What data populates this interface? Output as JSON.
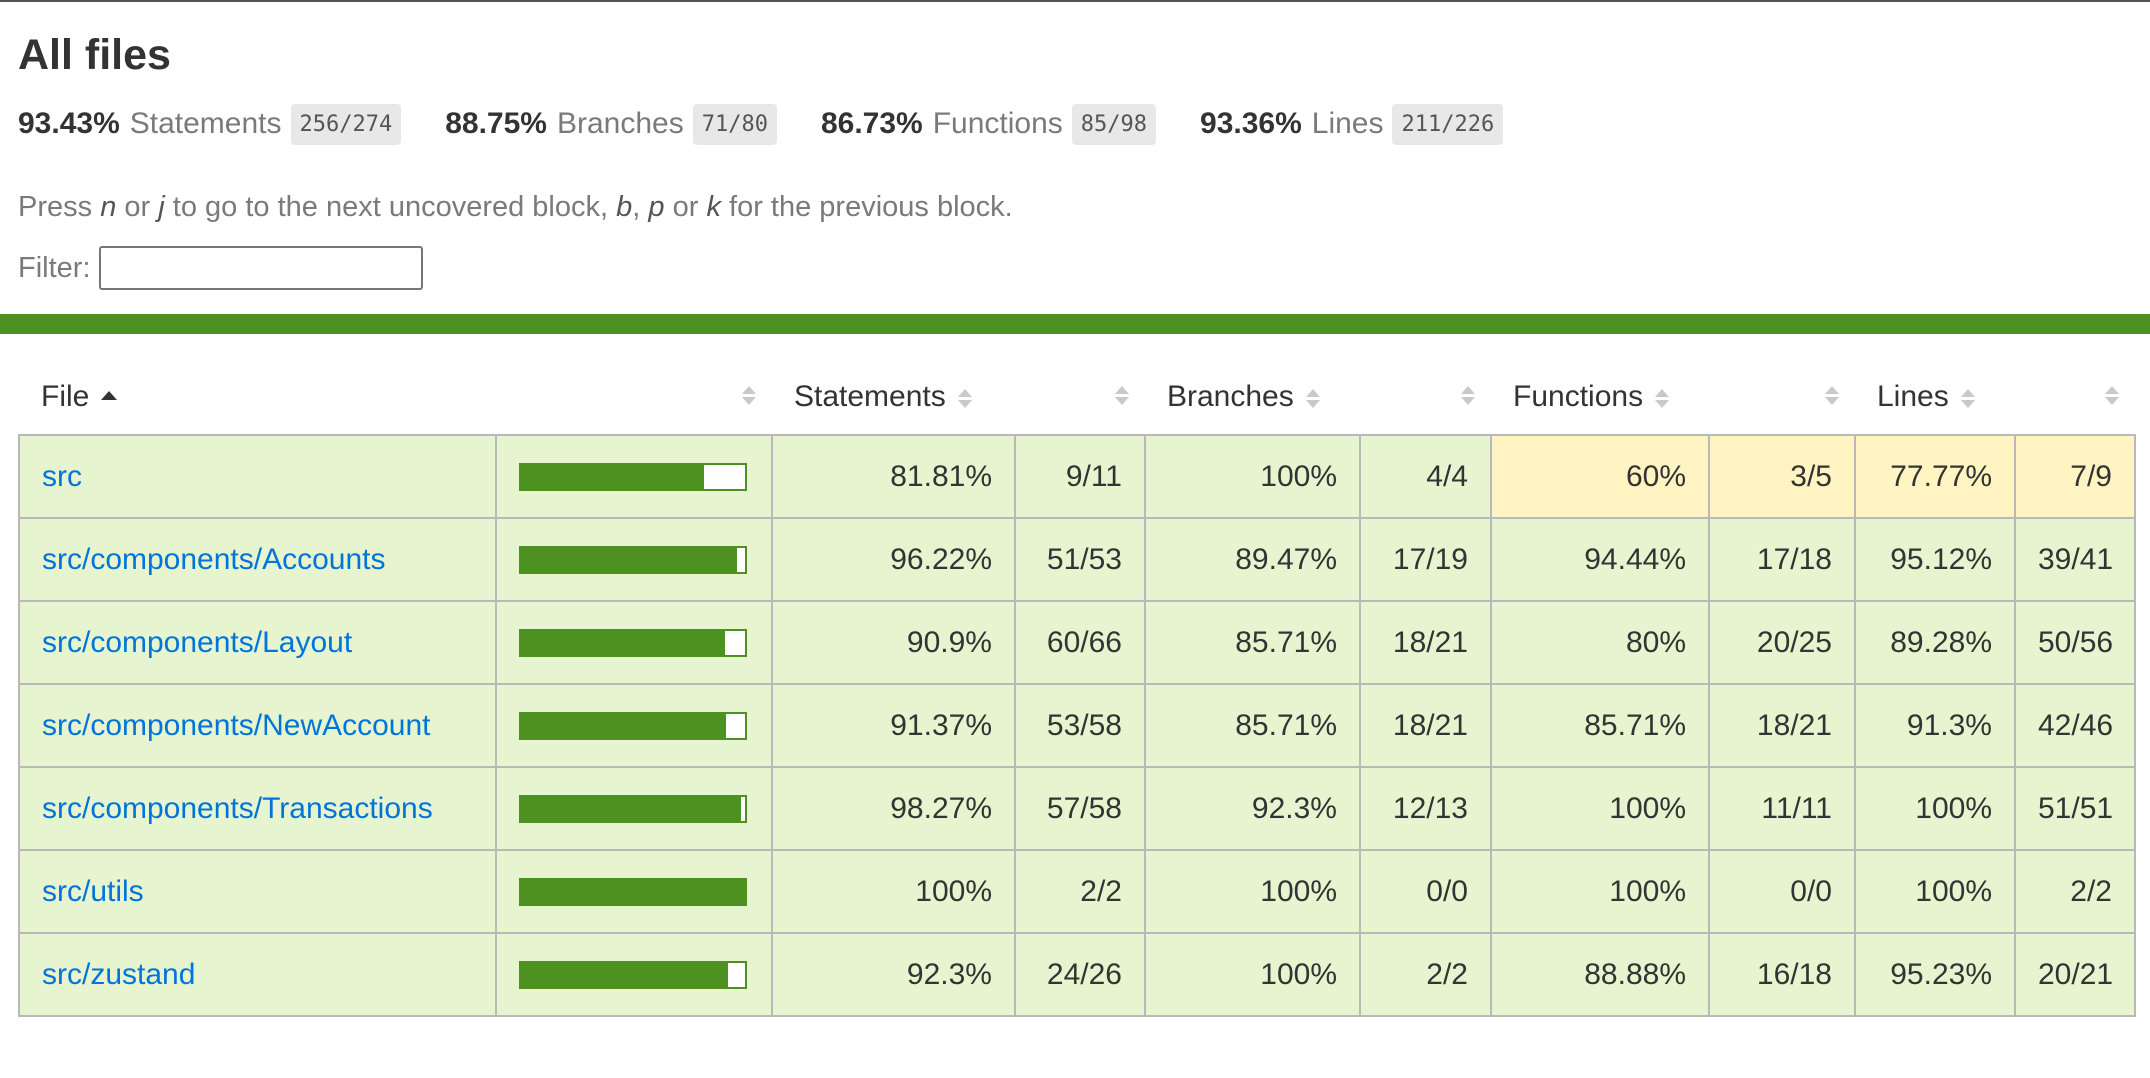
{
  "page": {
    "title": "All files",
    "summary": [
      {
        "pct": "93.43%",
        "label": "Statements",
        "frac": "256/274"
      },
      {
        "pct": "88.75%",
        "label": "Branches",
        "frac": "71/80"
      },
      {
        "pct": "86.73%",
        "label": "Functions",
        "frac": "85/98"
      },
      {
        "pct": "93.36%",
        "label": "Lines",
        "frac": "211/226"
      }
    ],
    "hint": {
      "press": "Press",
      "n": "n",
      "or1": "or",
      "j": "j",
      "mid": "to go to the next uncovered block,",
      "b": "b",
      "comma": ",",
      "p": "p",
      "or2": "or",
      "k": "k",
      "end": "for the previous block."
    },
    "filter_label": "Filter:",
    "filter_value": ""
  },
  "table": {
    "headers": {
      "file": "File",
      "statements": "Statements",
      "branches": "Branches",
      "functions": "Functions",
      "lines": "Lines"
    },
    "rows": [
      {
        "file": "src",
        "bar_fraction": 0.8181,
        "stmt_pct": "81.81%",
        "stmt_frac": "9/11",
        "br_pct": "100%",
        "br_frac": "4/4",
        "fn_pct": "60%",
        "fn_frac": "3/5",
        "ln_pct": "77.77%",
        "ln_frac": "7/9",
        "fn_level": "medium",
        "ln_level": "medium"
      },
      {
        "file": "src/components/Accounts",
        "bar_fraction": 0.9622,
        "stmt_pct": "96.22%",
        "stmt_frac": "51/53",
        "br_pct": "89.47%",
        "br_frac": "17/19",
        "fn_pct": "94.44%",
        "fn_frac": "17/18",
        "ln_pct": "95.12%",
        "ln_frac": "39/41",
        "fn_level": "high",
        "ln_level": "high"
      },
      {
        "file": "src/components/Layout",
        "bar_fraction": 0.909,
        "stmt_pct": "90.9%",
        "stmt_frac": "60/66",
        "br_pct": "85.71%",
        "br_frac": "18/21",
        "fn_pct": "80%",
        "fn_frac": "20/25",
        "ln_pct": "89.28%",
        "ln_frac": "50/56",
        "fn_level": "high",
        "ln_level": "high"
      },
      {
        "file": "src/components/NewAccount",
        "bar_fraction": 0.9137,
        "stmt_pct": "91.37%",
        "stmt_frac": "53/58",
        "br_pct": "85.71%",
        "br_frac": "18/21",
        "fn_pct": "85.71%",
        "fn_frac": "18/21",
        "ln_pct": "91.3%",
        "ln_frac": "42/46",
        "fn_level": "high",
        "ln_level": "high"
      },
      {
        "file": "src/components/Transactions",
        "bar_fraction": 0.9827,
        "stmt_pct": "98.27%",
        "stmt_frac": "57/58",
        "br_pct": "92.3%",
        "br_frac": "12/13",
        "fn_pct": "100%",
        "fn_frac": "11/11",
        "ln_pct": "100%",
        "ln_frac": "51/51",
        "fn_level": "high",
        "ln_level": "high"
      },
      {
        "file": "src/utils",
        "bar_fraction": 1.0,
        "stmt_pct": "100%",
        "stmt_frac": "2/2",
        "br_pct": "100%",
        "br_frac": "0/0",
        "fn_pct": "100%",
        "fn_frac": "0/0",
        "ln_pct": "100%",
        "ln_frac": "2/2",
        "fn_level": "high",
        "ln_level": "high"
      },
      {
        "file": "src/zustand",
        "bar_fraction": 0.923,
        "stmt_pct": "92.3%",
        "stmt_frac": "24/26",
        "br_pct": "100%",
        "br_frac": "2/2",
        "fn_pct": "88.88%",
        "fn_frac": "16/18",
        "ln_pct": "95.23%",
        "ln_frac": "20/21",
        "fn_level": "high",
        "ln_level": "high"
      }
    ]
  },
  "colors": {
    "high_bg": "#e6f5d0",
    "medium_bg": "#fff4c2",
    "bar_green": "#4d9221",
    "link": "#0074d9"
  }
}
